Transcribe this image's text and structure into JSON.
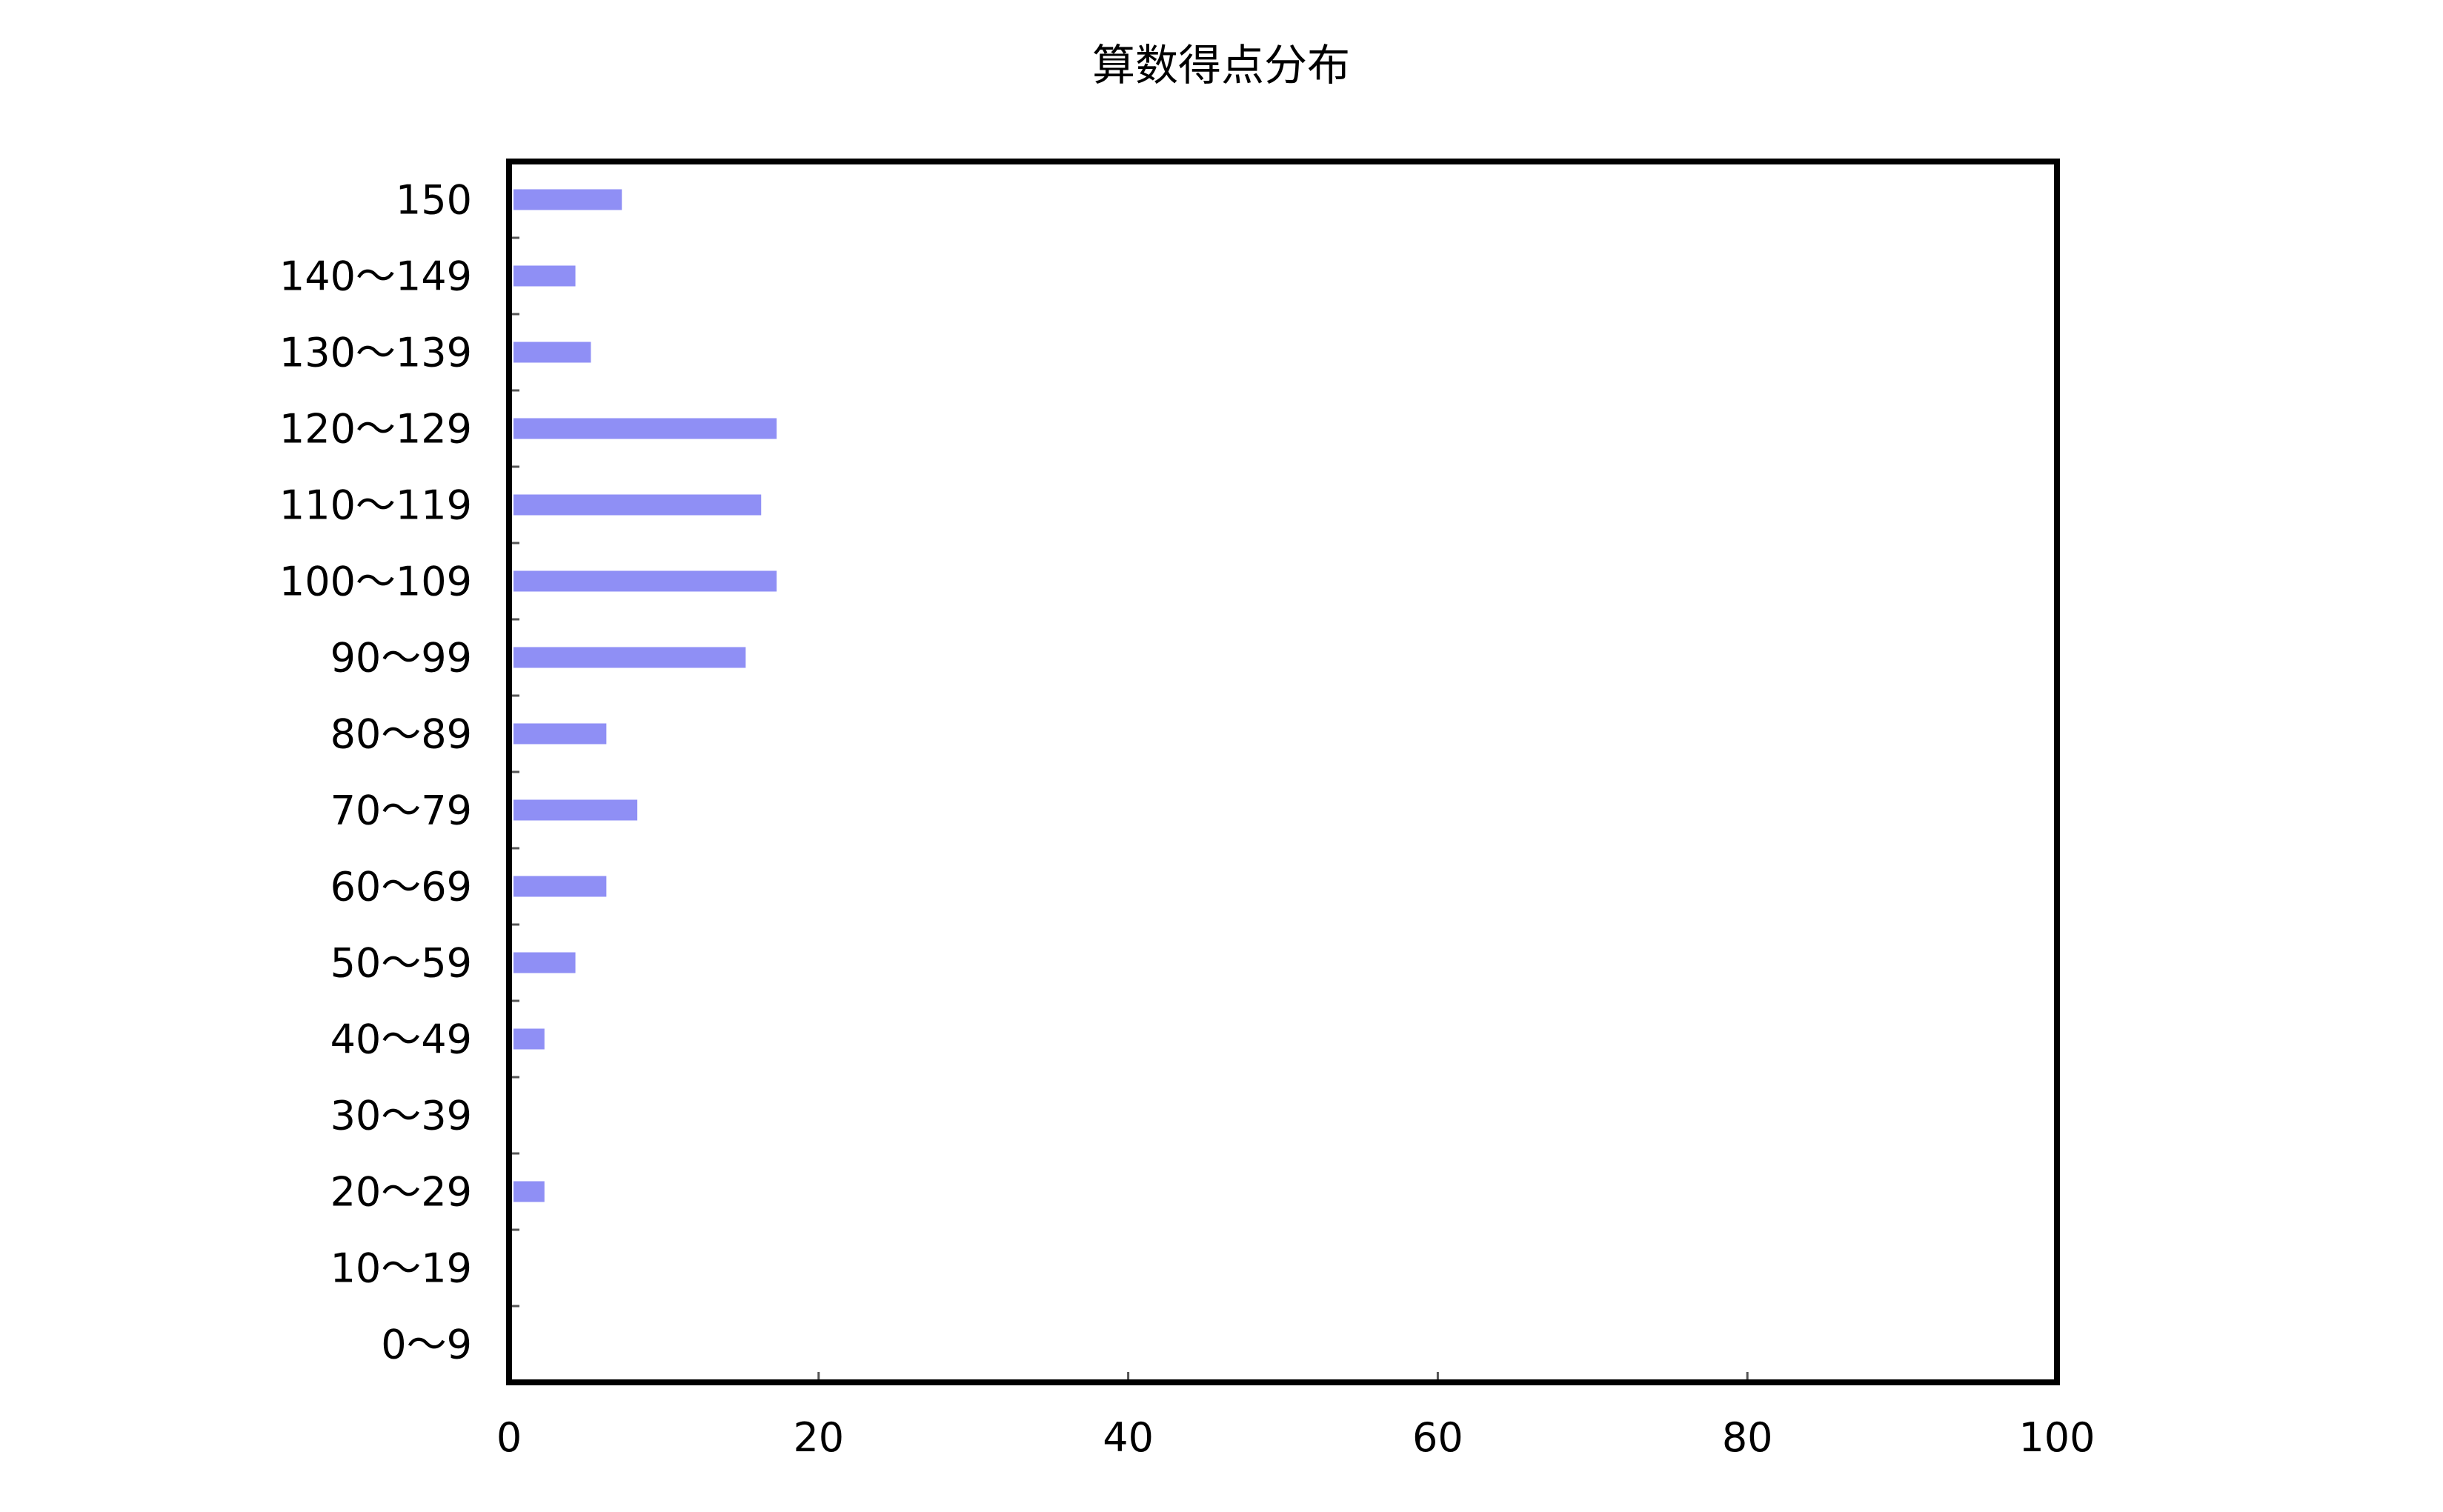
{
  "chart_data": {
    "type": "bar",
    "orientation": "horizontal",
    "title": "算数得点分布",
    "xlabel": "",
    "ylabel": "",
    "categories": [
      "150",
      "140～149",
      "130～139",
      "120～129",
      "110～119",
      "100～109",
      "90～99",
      "80～89",
      "70～79",
      "60～69",
      "50～59",
      "40～49",
      "30～39",
      "20～29",
      "10～19",
      "0～9"
    ],
    "values": [
      7,
      4,
      5,
      17,
      16,
      17,
      15,
      6,
      8,
      6,
      4,
      2,
      0,
      2,
      0,
      0
    ],
    "xlim": [
      0,
      100
    ],
    "xticks": [
      "0",
      "20",
      "40",
      "60",
      "80",
      "100"
    ],
    "grid": false,
    "legend": "none",
    "bar_color": "#8f8ff5"
  }
}
